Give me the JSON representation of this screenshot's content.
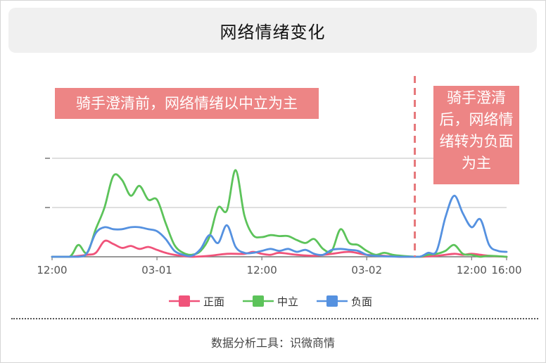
{
  "title": "网络情绪变化",
  "annotations": {
    "before": "骑手澄清前，网络情绪以中立为主",
    "after": "骑手澄清后，网络情绪转为负面为主"
  },
  "footer": "数据分析工具：识微商情",
  "colors": {
    "positive": "#f0537a",
    "neutral": "#5cc35a",
    "negative": "#5591e0",
    "annotation_bg": "#ed8585",
    "marker_line": "#e6777a"
  },
  "chart_data": {
    "type": "line",
    "title": "网络情绪变化",
    "x_ticks": [
      {
        "t": 0,
        "label": "12:00"
      },
      {
        "t": 12,
        "label": "03-01"
      },
      {
        "t": 24,
        "label": "12:00"
      },
      {
        "t": 36,
        "label": "03-02"
      },
      {
        "t": 48,
        "label": "12:00"
      },
      {
        "t": 52,
        "label": "16:00"
      }
    ],
    "xlim": [
      0,
      52
    ],
    "ylim": [
      0,
      100
    ],
    "y_gridlines": [
      50,
      100
    ],
    "grid": true,
    "legend_position": "bottom",
    "vertical_marker": {
      "t": 41.5
    },
    "series": [
      {
        "name": "正面",
        "color": "#f0537a",
        "points": [
          [
            0,
            0
          ],
          [
            2,
            0
          ],
          [
            4,
            2
          ],
          [
            5,
            4
          ],
          [
            6,
            16
          ],
          [
            7,
            13
          ],
          [
            8,
            9
          ],
          [
            9,
            11
          ],
          [
            10,
            8
          ],
          [
            11,
            10
          ],
          [
            12,
            7
          ],
          [
            13,
            4
          ],
          [
            14,
            2
          ],
          [
            16,
            0
          ],
          [
            18,
            1
          ],
          [
            20,
            3
          ],
          [
            22,
            3
          ],
          [
            23,
            5
          ],
          [
            24,
            3
          ],
          [
            25,
            2
          ],
          [
            26,
            4
          ],
          [
            28,
            2
          ],
          [
            30,
            1
          ],
          [
            32,
            3
          ],
          [
            34,
            5
          ],
          [
            36,
            2
          ],
          [
            38,
            1
          ],
          [
            40,
            0
          ],
          [
            42,
            0
          ],
          [
            44,
            1
          ],
          [
            46,
            3
          ],
          [
            47,
            2
          ],
          [
            48,
            3
          ],
          [
            49,
            2
          ],
          [
            50,
            1
          ],
          [
            52,
            0
          ]
        ]
      },
      {
        "name": "中立",
        "color": "#5cc35a",
        "points": [
          [
            0,
            0
          ],
          [
            2,
            0
          ],
          [
            3,
            12
          ],
          [
            4,
            4
          ],
          [
            5,
            28
          ],
          [
            6,
            50
          ],
          [
            7,
            82
          ],
          [
            8,
            78
          ],
          [
            9,
            62
          ],
          [
            10,
            72
          ],
          [
            11,
            58
          ],
          [
            12,
            58
          ],
          [
            13,
            34
          ],
          [
            14,
            12
          ],
          [
            15,
            4
          ],
          [
            16,
            2
          ],
          [
            17,
            6
          ],
          [
            18,
            20
          ],
          [
            19,
            50
          ],
          [
            20,
            47
          ],
          [
            21,
            88
          ],
          [
            22,
            42
          ],
          [
            23,
            22
          ],
          [
            24,
            20
          ],
          [
            25,
            22
          ],
          [
            26,
            21
          ],
          [
            27,
            21
          ],
          [
            28,
            17
          ],
          [
            29,
            14
          ],
          [
            30,
            18
          ],
          [
            31,
            8
          ],
          [
            32,
            6
          ],
          [
            33,
            28
          ],
          [
            34,
            14
          ],
          [
            35,
            12
          ],
          [
            36,
            6
          ],
          [
            37,
            2
          ],
          [
            38,
            4
          ],
          [
            39,
            2
          ],
          [
            40,
            1
          ],
          [
            42,
            0
          ],
          [
            43,
            2
          ],
          [
            44,
            3
          ],
          [
            45,
            6
          ],
          [
            46,
            12
          ],
          [
            47,
            3
          ],
          [
            48,
            2
          ],
          [
            49,
            0
          ],
          [
            50,
            1
          ],
          [
            52,
            0
          ]
        ]
      },
      {
        "name": "负面",
        "color": "#5591e0",
        "points": [
          [
            0,
            0
          ],
          [
            3,
            0
          ],
          [
            4,
            4
          ],
          [
            5,
            24
          ],
          [
            6,
            30
          ],
          [
            7,
            28
          ],
          [
            8,
            28
          ],
          [
            9,
            30
          ],
          [
            10,
            30
          ],
          [
            11,
            28
          ],
          [
            12,
            26
          ],
          [
            13,
            18
          ],
          [
            14,
            6
          ],
          [
            15,
            2
          ],
          [
            16,
            1
          ],
          [
            17,
            8
          ],
          [
            18,
            22
          ],
          [
            19,
            14
          ],
          [
            20,
            32
          ],
          [
            21,
            10
          ],
          [
            22,
            4
          ],
          [
            23,
            4
          ],
          [
            24,
            6
          ],
          [
            25,
            8
          ],
          [
            26,
            6
          ],
          [
            27,
            8
          ],
          [
            28,
            5
          ],
          [
            29,
            7
          ],
          [
            30,
            3
          ],
          [
            31,
            2
          ],
          [
            32,
            7
          ],
          [
            33,
            8
          ],
          [
            34,
            7
          ],
          [
            35,
            6
          ],
          [
            36,
            2
          ],
          [
            37,
            1
          ],
          [
            40,
            0
          ],
          [
            42,
            0
          ],
          [
            43,
            4
          ],
          [
            44,
            6
          ],
          [
            45,
            40
          ],
          [
            46,
            62
          ],
          [
            47,
            44
          ],
          [
            48,
            30
          ],
          [
            49,
            38
          ],
          [
            50,
            12
          ],
          [
            51,
            6
          ],
          [
            52,
            5
          ]
        ]
      }
    ]
  }
}
